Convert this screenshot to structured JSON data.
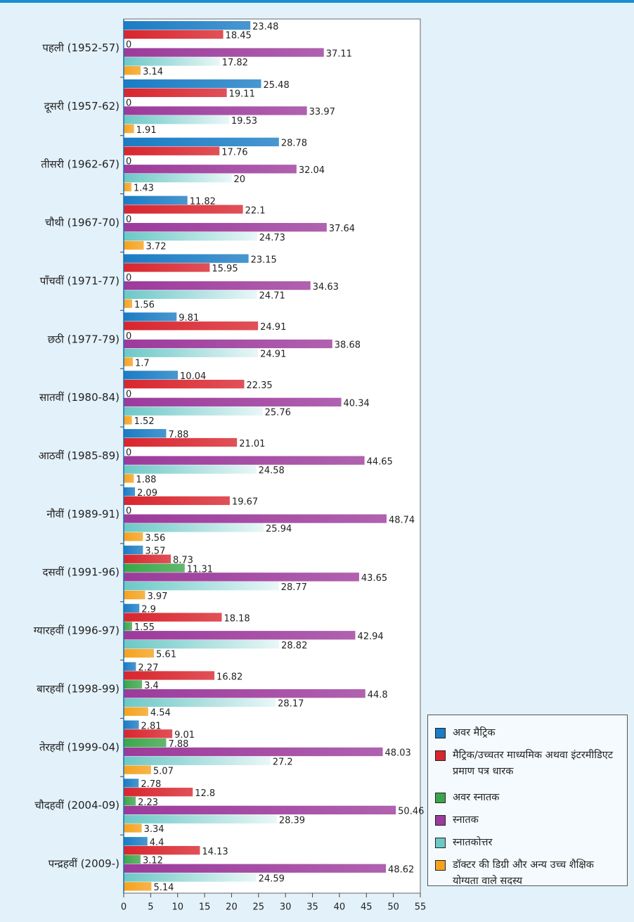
{
  "chart_data": {
    "type": "barh",
    "categories": [
      "पहली (1952-57)",
      "दूसरी (1957-62)",
      "तीसरी (1962-67)",
      "चौथी (1967-70)",
      "पाँचवीं (1971-77)",
      "छठी (1977-79)",
      "सातवीं (1980-84)",
      "आठवीं (1985-89)",
      "नौवीं (1989-91)",
      "दसवीं (1991-96)",
      "ग्यारहवीं (1996-97)",
      "बारहवीं (1998-99)",
      "तेरहवीं (1999-04)",
      "चौदहवीं (2004-09)",
      "पन्द्रहवीं (2009-)"
    ],
    "series": [
      {
        "name": "अवर मैट्रिक",
        "color": "#1a7cc4",
        "values": [
          23.48,
          25.48,
          28.78,
          11.82,
          23.15,
          9.81,
          10.04,
          7.88,
          2.09,
          3.57,
          2.9,
          2.27,
          2.81,
          2.78,
          4.4
        ]
      },
      {
        "name": "मैट्रिक/उच्चतर माध्यमिक अथवा इंटरमीडिएट प्रमाण पत्र धारक",
        "color": "#d9252e",
        "values": [
          18.45,
          19.11,
          17.76,
          22.1,
          15.95,
          24.91,
          22.35,
          21.01,
          19.67,
          8.73,
          18.18,
          16.82,
          9.01,
          12.8,
          14.13
        ]
      },
      {
        "name": "अवर स्नातक",
        "color": "#3aa64a",
        "values": [
          0,
          0,
          0,
          0,
          0,
          0,
          0,
          0,
          0,
          11.31,
          1.55,
          3.4,
          7.88,
          2.23,
          3.12
        ]
      },
      {
        "name": "स्नातक",
        "color": "#9c3a9b",
        "values": [
          37.11,
          33.97,
          32.04,
          37.64,
          34.63,
          38.68,
          40.34,
          44.65,
          48.74,
          43.65,
          42.94,
          44.8,
          48.03,
          50.46,
          48.62
        ]
      },
      {
        "name": "स्नातकोत्तर",
        "color": "#6cc8c6",
        "values": [
          17.82,
          19.53,
          20,
          24.73,
          24.71,
          24.91,
          25.76,
          24.58,
          25.94,
          28.77,
          28.82,
          28.17,
          27.2,
          28.39,
          24.59
        ]
      },
      {
        "name": "डॉक्टर की डिग्री और अन्य उच्च शैक्षिक योग्यता वाले सदस्य",
        "color": "#f5a21e",
        "values": [
          3.14,
          1.91,
          1.43,
          3.72,
          1.56,
          1.7,
          1.52,
          1.88,
          3.56,
          3.97,
          5.61,
          4.54,
          5.07,
          3.34,
          5.14
        ]
      }
    ],
    "xlim": [
      0,
      55
    ],
    "xticks": [
      0,
      5,
      10,
      15,
      20,
      25,
      30,
      35,
      40,
      45,
      50,
      55
    ]
  }
}
